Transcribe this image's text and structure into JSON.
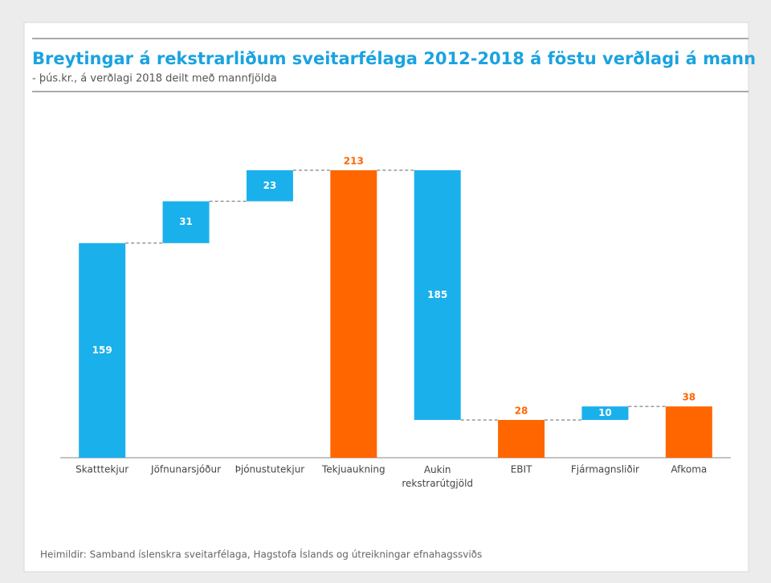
{
  "chart_data": {
    "type": "waterfall",
    "title": "Breytingar á rekstrarliðum sveitarfélaga 2012-2018 á föstu verðlagi á mann",
    "subtitle": "- þús.kr., á verðlagi 2018 deilt með mannfjölda",
    "categories": [
      "Skatttekjur",
      "Jöfnunarsjóður",
      "Þjónustutekjur",
      "Tekjuaukning",
      "Aukin rekstrarútgjöld",
      "EBIT",
      "Fjármagnsliðir",
      "Afkoma"
    ],
    "values": [
      159,
      31,
      23,
      213,
      -185,
      28,
      10,
      38
    ],
    "value_labels": [
      "159",
      "31",
      "23",
      "213",
      "185",
      "28",
      "10",
      "38"
    ],
    "color": "#1ab0ec",
    "total_color": "#ff6600",
    "source": "Heimildir: Samband íslenskra sveitarfélaga, Hagstofa Íslands og útreikningar efnahagssviðs"
  }
}
